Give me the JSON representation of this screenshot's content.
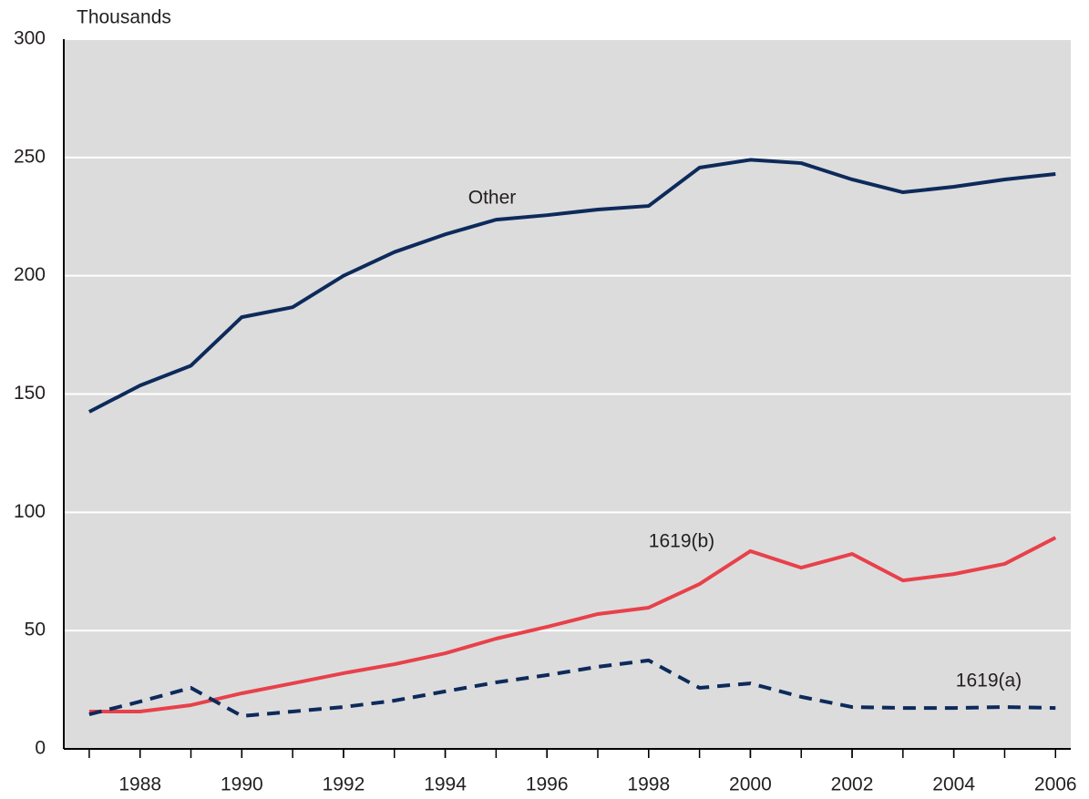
{
  "chart_data": {
    "type": "line",
    "y_label": "Thousands",
    "x": [
      1987,
      1988,
      1989,
      1990,
      1991,
      1992,
      1993,
      1994,
      1995,
      1996,
      1997,
      1998,
      1999,
      2000,
      2001,
      2002,
      2003,
      2004,
      2005,
      2006
    ],
    "series": [
      {
        "name": "Other",
        "color": "#0d2a5a",
        "dashed": false,
        "values": [
          142.5,
          153.6,
          162,
          182.5,
          186.7,
          200,
          210,
          217.5,
          223.7,
          225.6,
          228,
          229.5,
          245.7,
          249,
          247.6,
          240.7,
          235.3,
          237.6,
          240.7,
          243
        ]
      },
      {
        "name": "1619(b)",
        "color": "#e8414a",
        "dashed": false,
        "values": [
          15.8,
          15.8,
          18.5,
          23.5,
          27.7,
          32,
          35.8,
          40.4,
          46.6,
          51.6,
          57,
          59.7,
          69.7,
          83.6,
          76.6,
          82.4,
          71.2,
          73.9,
          78.2,
          89.3
        ]
      },
      {
        "name": "1619(a)",
        "color": "#0d2a5a",
        "dashed": true,
        "values": [
          14.6,
          20,
          25.8,
          13.9,
          15.8,
          17.7,
          20.4,
          24.3,
          28.1,
          31.2,
          34.7,
          37.4,
          25.8,
          27.7,
          22,
          17.7,
          17.3,
          17.3,
          17.7,
          17.3
        ]
      }
    ],
    "xlim": [
      1986.5,
      2006.3
    ],
    "xticks": [
      1988,
      1990,
      1992,
      1994,
      1996,
      1998,
      2000,
      2002,
      2004,
      2006
    ],
    "ylim": [
      0,
      300
    ],
    "yticks": [
      0,
      50,
      100,
      150,
      200,
      250,
      300
    ],
    "grid": true
  }
}
